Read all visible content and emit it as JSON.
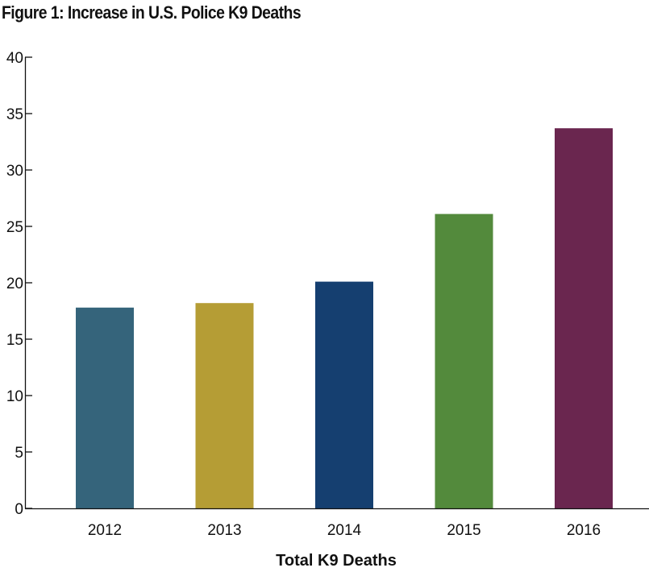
{
  "chart_data": {
    "type": "bar",
    "title": "Figure 1: Increase in U.S. Police K9 Deaths",
    "xlabel": "Total K9 Deaths",
    "ylabel": "",
    "categories": [
      "2012",
      "2013",
      "2014",
      "2015",
      "2016"
    ],
    "values": [
      17.8,
      18.2,
      20.1,
      26.1,
      33.7
    ],
    "colors": [
      "#35647b",
      "#b59d35",
      "#153f70",
      "#538a3c",
      "#6a264f"
    ],
    "ylim": [
      0,
      40
    ],
    "yticks": [
      0,
      5,
      10,
      15,
      20,
      25,
      30,
      35,
      40
    ],
    "grid": false,
    "legend": "none"
  }
}
